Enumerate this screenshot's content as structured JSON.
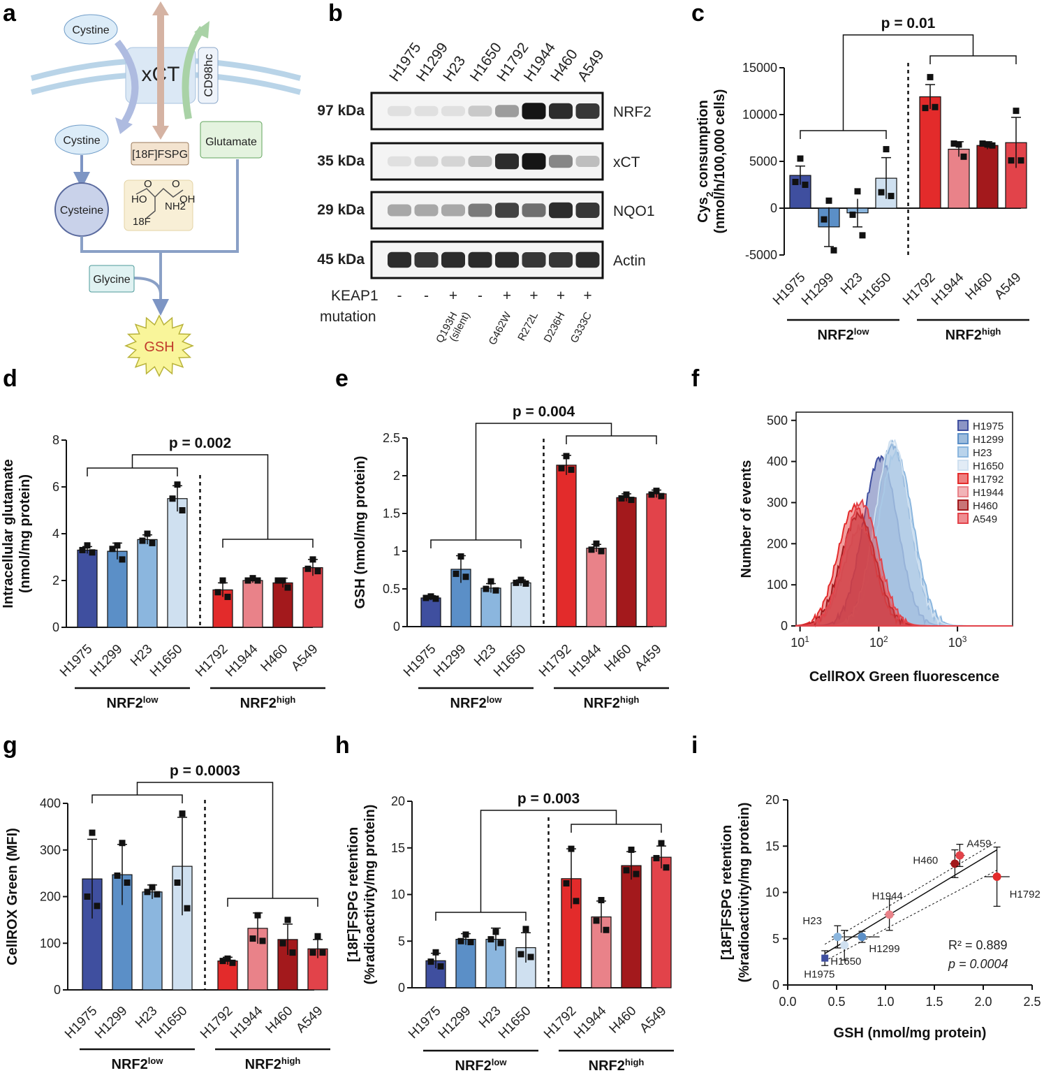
{
  "panel_letters": [
    "a",
    "b",
    "c",
    "d",
    "e",
    "f",
    "g",
    "h",
    "i"
  ],
  "groups": {
    "low": "NRF2",
    "low_sup": "low",
    "high": "NRF2",
    "high_sup": "high"
  },
  "colors": {
    "H1975": "#3f4f9f",
    "H1299": "#5b8fc7",
    "H23": "#8bb6de",
    "H1650": "#cfe0f0",
    "H1792": "#e32b2b",
    "H1944": "#e98289",
    "H460": "#a3191c",
    "A549": "#e2434a"
  },
  "schematic": {
    "cystine_out": "Cystine",
    "transporter": "xCT",
    "chaperone": "CD98hc",
    "cystine_in": "Cystine",
    "tracer": "[18F]FSPG",
    "glutamate": "Glutamate",
    "cysteine": "Cysteine",
    "glycine": "Glycine",
    "gsh": "GSH",
    "struct_labels": [
      "HO",
      "O",
      "O",
      "OH",
      "NH2",
      "18F"
    ]
  },
  "western": {
    "lanes": [
      "H1975",
      "H1299",
      "H23",
      "H1650",
      "H1792",
      "H1944",
      "H460",
      "A549"
    ],
    "rows": [
      {
        "kda": "97 kDa",
        "protein": "NRF2",
        "intensity": [
          0.05,
          0.05,
          0.05,
          0.15,
          0.35,
          0.95,
          0.85,
          0.8
        ]
      },
      {
        "kda": "35 kDa",
        "protein": "xCT",
        "intensity": [
          0.05,
          0.1,
          0.1,
          0.2,
          0.85,
          0.95,
          0.45,
          0.2
        ]
      },
      {
        "kda": "29 kDa",
        "protein": "NQO1",
        "intensity": [
          0.3,
          0.3,
          0.3,
          0.5,
          0.75,
          0.55,
          0.85,
          0.8
        ]
      },
      {
        "kda": "45 kDa",
        "protein": "Actin",
        "intensity": [
          0.85,
          0.8,
          0.85,
          0.85,
          0.85,
          0.8,
          0.8,
          0.85
        ]
      }
    ],
    "keap1_label_1": "KEAP1",
    "keap1_label_2": "mutation",
    "keap1_status": [
      "-",
      "-",
      "+",
      "-",
      "+",
      "+",
      "+",
      "+"
    ],
    "keap1_mutations": [
      {
        "lane": 2,
        "text": "Q193H",
        "text2": "(silent)"
      },
      {
        "lane": 4,
        "text": "G462W",
        "text2": ""
      },
      {
        "lane": 5,
        "text": "R272L",
        "text2": ""
      },
      {
        "lane": 6,
        "text": "D236H",
        "text2": ""
      },
      {
        "lane": 7,
        "text": "G333C",
        "text2": ""
      }
    ]
  },
  "chart_data": [
    {
      "panel": "c",
      "type": "bar",
      "categories": [
        "H1975",
        "H1299",
        "H23",
        "H1650",
        "H1792",
        "H1944",
        "H460",
        "A549"
      ],
      "values": [
        3500,
        -2000,
        -500,
        3200,
        11900,
        6300,
        6700,
        7000
      ],
      "errors": [
        1000,
        2100,
        1500,
        2200,
        1300,
        800,
        400,
        2700
      ],
      "points": [
        [
          5300,
          2800,
          2500
        ],
        [
          800,
          -1200,
          -4500
        ],
        [
          1800,
          -700,
          -2900
        ],
        [
          6300,
          1700,
          1300
        ],
        [
          14000,
          10700,
          10800
        ],
        [
          6800,
          6900,
          5500
        ],
        [
          6800,
          6900,
          6700
        ],
        [
          10400,
          5100,
          5100
        ]
      ],
      "ylabel_1": "Cys",
      "ylabel_sub": "2",
      "ylabel_2": " consumption",
      "ylabel_3": "(nmol/h/100,000 cells)",
      "yticks": [
        15000,
        10000,
        5000,
        0,
        -5000
      ],
      "ylim": [
        -5000,
        15000
      ],
      "pvalue": "p = 0.01"
    },
    {
      "panel": "d",
      "type": "bar",
      "categories": [
        "H1975",
        "H1299",
        "H23",
        "H1650",
        "H1792",
        "H1944",
        "H460",
        "A549"
      ],
      "values": [
        3.3,
        3.25,
        3.75,
        5.5,
        1.6,
        2.0,
        1.9,
        2.55
      ],
      "errors": [
        0.15,
        0.35,
        0.2,
        0.55,
        0.3,
        0.1,
        0.2,
        0.35
      ],
      "points": [
        [
          3.5,
          3.3,
          3.2
        ],
        [
          3.5,
          3.35,
          2.9
        ],
        [
          4.0,
          3.7,
          3.6
        ],
        [
          6.1,
          5.5,
          5.0
        ],
        [
          2.0,
          1.5,
          1.3
        ],
        [
          2.1,
          2.0,
          2.0
        ],
        [
          2.0,
          2.0,
          1.7
        ],
        [
          2.9,
          2.5,
          2.4
        ]
      ],
      "ylabel_1": "Intracellular glutamate",
      "ylabel_2": "(nmol/mg protein)",
      "yticks": [
        8,
        6,
        4,
        2,
        0
      ],
      "ylim": [
        0,
        8
      ],
      "pvalue": "p = 0.002"
    },
    {
      "panel": "e",
      "type": "bar",
      "categories": [
        "H1975",
        "H1299",
        "H23",
        "H1650",
        "H1792",
        "H1944",
        "H460",
        "A459"
      ],
      "values": [
        0.38,
        0.76,
        0.51,
        0.58,
        2.14,
        1.04,
        1.71,
        1.76
      ],
      "errors": [
        0.03,
        0.18,
        0.06,
        0.04,
        0.13,
        0.05,
        0.05,
        0.05
      ],
      "points": [
        [
          0.4,
          0.38,
          0.37
        ],
        [
          0.93,
          0.7,
          0.66
        ],
        [
          0.6,
          0.5,
          0.48
        ],
        [
          0.62,
          0.58,
          0.57
        ],
        [
          2.26,
          2.1,
          2.08
        ],
        [
          1.1,
          1.02,
          1.0
        ],
        [
          1.75,
          1.7,
          1.68
        ],
        [
          1.8,
          1.75,
          1.73
        ]
      ],
      "ylabel_1": "GSH (nmol/mg protein)",
      "ylabel_2": "",
      "yticks": [
        2.5,
        2.0,
        1.5,
        1.0,
        0.5,
        0.0
      ],
      "ylim": [
        0,
        2.5
      ],
      "pvalue": "p = 0.004"
    },
    {
      "panel": "f",
      "type": "area",
      "series": [
        {
          "name": "H1975",
          "peak": 105,
          "height": 410
        },
        {
          "name": "H1299",
          "peak": 150,
          "height": 440
        },
        {
          "name": "H23",
          "peak": 165,
          "height": 420
        },
        {
          "name": "H1650",
          "peak": 150,
          "height": 450
        },
        {
          "name": "H1792",
          "peak": 50,
          "height": 290
        },
        {
          "name": "H1944",
          "peak": 60,
          "height": 240
        },
        {
          "name": "H460",
          "peak": 55,
          "height": 270
        },
        {
          "name": "A549",
          "peak": 60,
          "height": 300
        }
      ],
      "xlabel": "CellROX Green fluorescence",
      "ylabel": "Number of events",
      "yticks": [
        500,
        400,
        300,
        200,
        100,
        0
      ],
      "xticks": [
        {
          "base": "10",
          "exp": "1"
        },
        {
          "base": "10",
          "exp": "2"
        },
        {
          "base": "10",
          "exp": "3"
        }
      ],
      "ylim": [
        0,
        520
      ],
      "xlim_log": [
        0.95,
        3.7
      ]
    },
    {
      "panel": "g",
      "type": "bar",
      "categories": [
        "H1975",
        "H1299",
        "H23",
        "H1650",
        "H1792",
        "H1944",
        "H460",
        "A549"
      ],
      "values": [
        238,
        247,
        210,
        265,
        62,
        132,
        108,
        88
      ],
      "errors": [
        85,
        65,
        15,
        105,
        8,
        33,
        33,
        20
      ],
      "points": [
        [
          337,
          200,
          180
        ],
        [
          315,
          245,
          230
        ],
        [
          220,
          210,
          205
        ],
        [
          378,
          230,
          175
        ],
        [
          67,
          62,
          58
        ],
        [
          160,
          110,
          105
        ],
        [
          150,
          100,
          80
        ],
        [
          115,
          80,
          80
        ]
      ],
      "ylabel_1": "CellROX Green (MFI)",
      "ylabel_2": "",
      "yticks": [
        400,
        300,
        200,
        100,
        0
      ],
      "ylim": [
        0,
        400
      ],
      "pvalue": "p = 0.0003"
    },
    {
      "panel": "h",
      "type": "bar",
      "categories": [
        "H1975",
        "H1299",
        "H23",
        "H1650",
        "H1792",
        "H1944",
        "H460",
        "A549"
      ],
      "values": [
        2.9,
        5.2,
        5.2,
        4.3,
        11.7,
        7.6,
        13.1,
        14.0
      ],
      "errors": [
        0.8,
        0.6,
        1.2,
        1.6,
        3.2,
        1.7,
        1.5,
        1.2
      ],
      "points": [
        [
          3.8,
          2.8,
          2.3
        ],
        [
          5.7,
          5.0,
          4.9
        ],
        [
          6.0,
          5.2,
          4.8
        ],
        [
          6.3,
          3.6,
          3.3
        ],
        [
          14.9,
          11.2,
          9.3
        ],
        [
          9.4,
          7.2,
          6.2
        ],
        [
          14.8,
          12.6,
          12.2
        ],
        [
          15.5,
          13.9,
          12.9
        ]
      ],
      "ylabel_1": "[18F]FSPG retention",
      "ylabel_2": "(%radioactivity/mg protein)",
      "yticks": [
        20,
        15,
        10,
        5,
        0
      ],
      "ylim": [
        0,
        20
      ],
      "pvalue": "p = 0.003"
    },
    {
      "panel": "i",
      "type": "scatter",
      "points": [
        {
          "name": "H1975",
          "x": 0.38,
          "y": 2.9,
          "xe": 0.03,
          "ye": 0.8
        },
        {
          "name": "H23",
          "x": 0.51,
          "y": 5.2,
          "xe": 0.06,
          "ye": 1.2
        },
        {
          "name": "H1650",
          "x": 0.58,
          "y": 4.3,
          "xe": 0.04,
          "ye": 1.6
        },
        {
          "name": "H1299",
          "x": 0.76,
          "y": 5.2,
          "xe": 0.18,
          "ye": 0.6
        },
        {
          "name": "H1944",
          "x": 1.04,
          "y": 7.6,
          "xe": 0.05,
          "ye": 1.7
        },
        {
          "name": "H460",
          "x": 1.71,
          "y": 13.1,
          "xe": 0.05,
          "ye": 1.5
        },
        {
          "name": "A459",
          "x": 1.76,
          "y": 14.0,
          "xe": 0.05,
          "ye": 1.2
        },
        {
          "name": "H1792",
          "x": 2.14,
          "y": 11.7,
          "xe": 0.13,
          "ye": 3.2
        }
      ],
      "fit": {
        "x0": 0.38,
        "y0": 3.4,
        "x1": 2.14,
        "y1": 14.6
      },
      "xlabel": "GSH (nmol/mg protein)",
      "ylabel_1": "[18F]FSPG retention",
      "ylabel_2": "(%radioactivity/mg protein)",
      "xticks": [
        0.0,
        0.5,
        1.0,
        1.5,
        2.0,
        2.5
      ],
      "yticks": [
        20,
        15,
        10,
        5,
        0
      ],
      "xlim": [
        0,
        2.5
      ],
      "ylim": [
        0,
        20
      ],
      "r2": "R² = 0.889",
      "pvalue": "p = 0.0004"
    }
  ]
}
